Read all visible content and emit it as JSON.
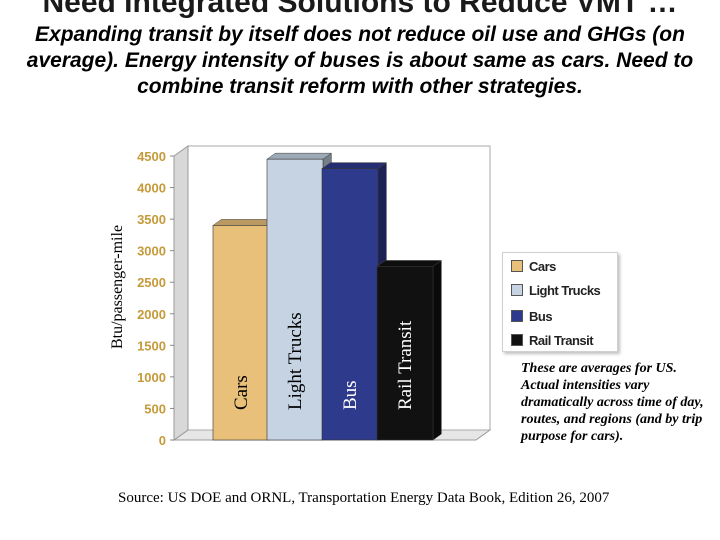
{
  "slide": {
    "title": "Need Integrated Solutions to Reduce VMT …",
    "subtitle": "Expanding transit by itself does not reduce oil use and GHGs (on average). Energy intensity of buses is about same as cars. Need to combine transit reform with other strategies.",
    "note": "These are averages for US. Actual intensities vary dramatically across time of day, routes, and regions (and by trip purpose for cars).",
    "source": "Source: US DOE and ORNL, Transportation Energy Data Book, Edition 26, 2007"
  },
  "chart_data": {
    "type": "bar",
    "ylabel": "Btu/passenger-mile",
    "ylim": [
      0,
      4500
    ],
    "yticks": [
      0,
      500,
      1000,
      1500,
      2000,
      2500,
      3000,
      3500,
      4000,
      4500
    ],
    "categories": [
      "Cars",
      "Light Trucks",
      "Bus",
      "Rail Transit"
    ],
    "values": [
      3400,
      4450,
      4300,
      2750
    ],
    "colors": [
      "#e8c07a",
      "#c5d3e3",
      "#2e3a8c",
      "#111111"
    ],
    "legend": {
      "position": "right",
      "entries": [
        "Cars",
        "Light Trucks",
        "Bus",
        "Rail Transit"
      ]
    },
    "grid": false,
    "style": "3d"
  }
}
